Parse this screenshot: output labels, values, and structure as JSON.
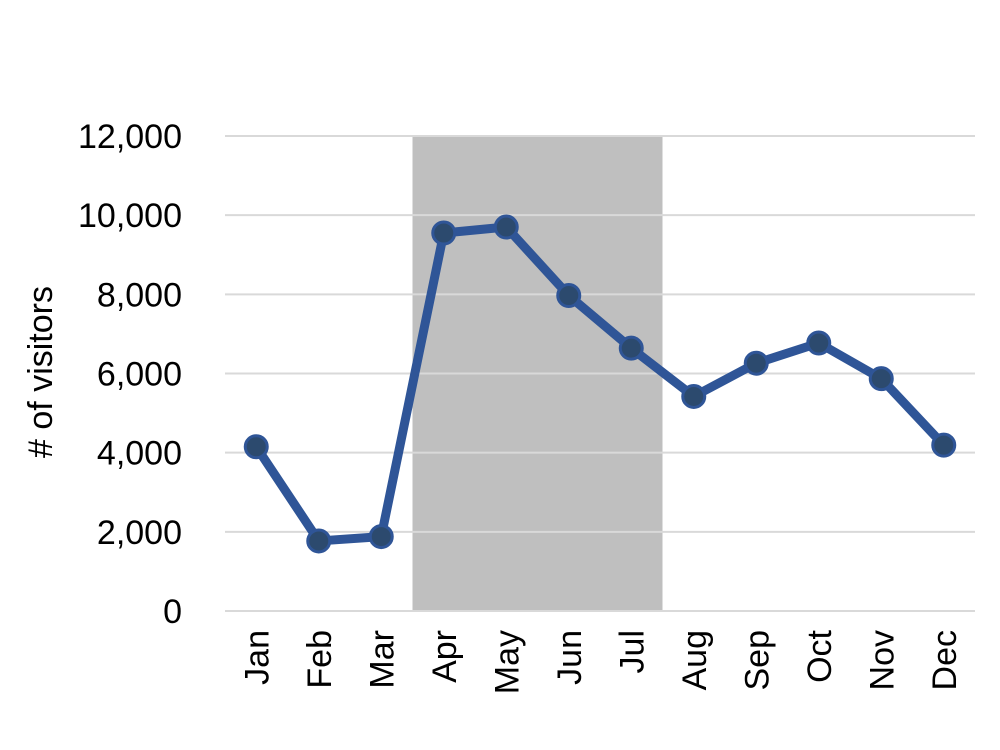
{
  "chart_data": {
    "type": "line",
    "categories": [
      "Jan",
      "Feb",
      "Mar",
      "Apr",
      "May",
      "Jun",
      "Jul",
      "Aug",
      "Sep",
      "Oct",
      "Nov",
      "Dec"
    ],
    "series": [
      {
        "values": [
          4150,
          1770,
          1880,
          9550,
          9700,
          7970,
          6640,
          5420,
          6260,
          6770,
          5870,
          4190
        ],
        "color": "#2f5597"
      }
    ],
    "ylabel": "# of visitors",
    "ylim": [
      0,
      12000
    ],
    "yticks": [
      0,
      2000,
      4000,
      6000,
      8000,
      10000,
      12000
    ],
    "ytick_labels": [
      "0",
      "2,000",
      "4,000",
      "6,000",
      "8,000",
      "10,000",
      "12,000"
    ],
    "grid": true,
    "shaded_range": {
      "from": "Apr",
      "to": "Jul",
      "color": "#bfbfbf"
    },
    "gridline_color": "#d9d9d9"
  }
}
